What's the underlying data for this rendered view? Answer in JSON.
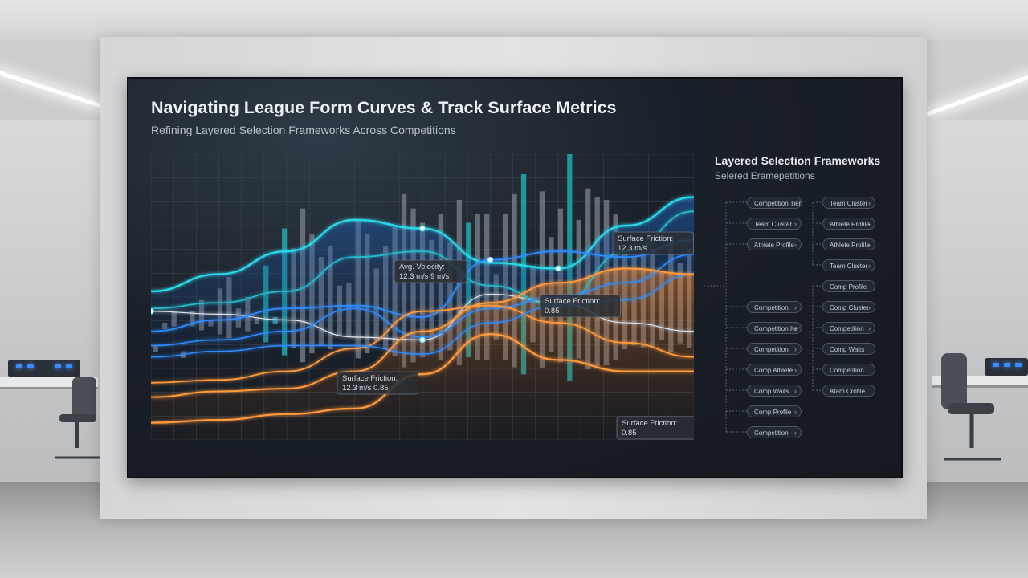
{
  "screen": {
    "title": "Navigating League Form Curves & Track Surface Metrics",
    "subtitle": "Refining Layered Selection Frameworks Across Competitions"
  },
  "sidebar": {
    "title": "Layered Selection Frameworks",
    "subtitle": "Selered Eramepetitions",
    "col1": [
      "Competition Tier",
      "Team Cluster",
      "Athlete Profile",
      "Competition",
      "Competition Iter",
      "Competition",
      "Comp Athlete",
      "Comp Waits",
      "Comp Profile",
      "Competition"
    ],
    "col2": [
      "Team Cluster",
      "Athlete Profile",
      "Athlete Profile",
      "Team Cluster",
      "Comp Profile",
      "Comp Cluster",
      "Competition",
      "Comp Waits",
      "Competition",
      "Atam Crofile"
    ]
  },
  "chart_data": {
    "type": "line",
    "title": "",
    "xlabel": "",
    "ylabel": "",
    "bars": [
      0.33,
      0.41,
      0.45,
      0.31,
      0.45,
      0.49,
      0.42,
      0.53,
      0.57,
      0.46,
      0.5,
      0.43,
      0.61,
      0.43,
      0.74,
      0.67,
      0.81,
      0.72,
      0.64,
      0.68,
      0.54,
      0.55,
      0.77,
      0.72,
      0.6,
      0.68,
      0.75,
      0.86,
      0.81,
      0.76,
      0.7,
      0.79,
      0.69,
      0.84,
      0.76,
      0.79,
      0.79,
      0.58,
      0.79,
      0.86,
      0.93,
      0.61,
      0.87,
      0.71,
      0.81,
      1,
      0.77,
      0.88,
      0.85,
      0.84,
      0.79,
      0.68,
      0.64,
      0.66,
      0.67,
      0.59,
      0.71,
      0.62,
      0.67
    ],
    "bar_highlight_indices": [
      12,
      13,
      14,
      34,
      40,
      45
    ],
    "series": [
      {
        "values": [
          0.45,
          0.44,
          0.42,
          0.36,
          0.35,
          0.51,
          0.48,
          0.41,
          0.38
        ]
      },
      {
        "values": [
          0.52,
          0.58,
          0.66,
          0.77,
          0.74,
          0.62,
          0.6,
          0.75,
          0.85
        ]
      },
      {
        "values": [
          0.46,
          0.48,
          0.52,
          0.64,
          0.66,
          0.54,
          0.47,
          0.66,
          0.8
        ]
      },
      {
        "values": [
          0.38,
          0.42,
          0.46,
          0.47,
          0.43,
          0.63,
          0.66,
          0.64,
          0.7
        ]
      },
      {
        "values": [
          0.33,
          0.35,
          0.38,
          0.46,
          0.36,
          0.46,
          0.5,
          0.55,
          0.65
        ]
      },
      {
        "values": [
          0.2,
          0.21,
          0.24,
          0.32,
          0.45,
          0.47,
          0.41,
          0.34,
          0.29
        ]
      },
      {
        "values": [
          0.29,
          0.31,
          0.33,
          0.33,
          0.3,
          0.41,
          0.47,
          0.49,
          0.58
        ]
      },
      {
        "values": [
          0.15,
          0.17,
          0.18,
          0.24,
          0.38,
          0.48,
          0.55,
          0.6,
          0.58
        ]
      },
      {
        "values": [
          0.06,
          0.07,
          0.09,
          0.11,
          0.23,
          0.37,
          0.28,
          0.24,
          0.24
        ]
      }
    ],
    "annotations": [
      {
        "lines": [
          "Avg. Velocity:",
          "12.3 m/s  9 m/s"
        ]
      },
      {
        "lines": [
          "Surface Friction:",
          "12.3 m/s"
        ]
      },
      {
        "lines": [
          "Surface Friction:",
          "0.85"
        ]
      },
      {
        "lines": [
          "Surface Friction:",
          "12.3 m/s    0.85"
        ]
      },
      {
        "lines": [
          "Surface Friction:",
          "0.85"
        ]
      }
    ],
    "colors": {
      "white": "#dfe7f1",
      "cyan": "#2ad8e8",
      "teal": "#27b9c8",
      "blue": "#2f8cff",
      "orange": "#ff9a3c",
      "bar": "#7c838c",
      "bar_highlight": "#1fa3a8"
    }
  }
}
